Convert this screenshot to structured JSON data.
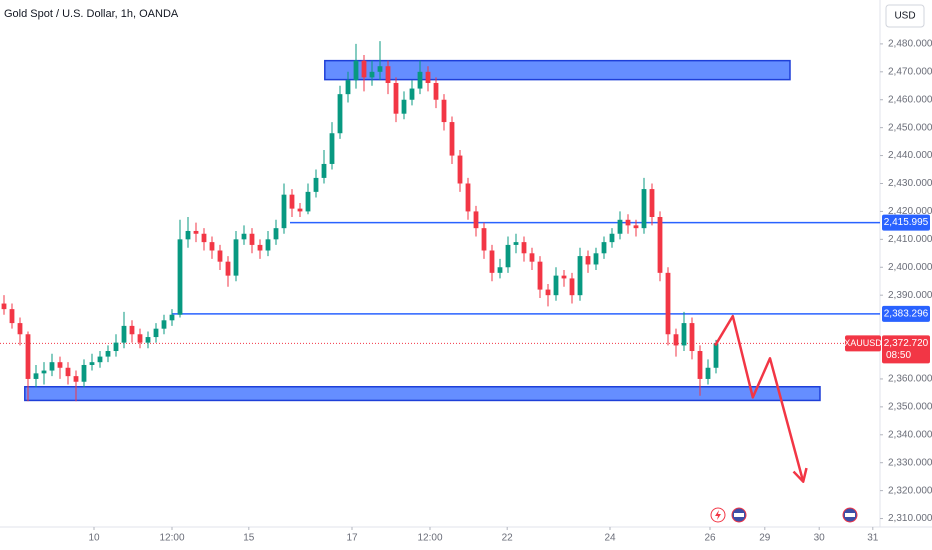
{
  "chart_data": {
    "type": "candlestick",
    "title": "Gold Spot / U.S. Dollar, 1h, OANDA",
    "currency": "USD",
    "up_color": "#089981",
    "down_color": "#f23645",
    "grid": false,
    "xlim": [
      -0.5,
      109.5
    ],
    "xticks": [
      {
        "value": 11.25,
        "label": "10"
      },
      {
        "value": 21,
        "label": "12:00"
      },
      {
        "value": 30.6,
        "label": "15"
      },
      {
        "value": 43.5,
        "label": "17"
      },
      {
        "value": 53.25,
        "label": "12:00"
      },
      {
        "value": 62.9,
        "label": "22"
      },
      {
        "value": 75.75,
        "label": "24"
      },
      {
        "value": 88.25,
        "label": "26"
      },
      {
        "value": 95.1,
        "label": "29"
      },
      {
        "value": 101.9,
        "label": "30"
      },
      {
        "value": 108.6,
        "label": "31"
      }
    ],
    "ylim": [
      2306.97,
      2495.72
    ],
    "yticks": [
      {
        "value": 2480,
        "label": "2,480.000"
      },
      {
        "value": 2470,
        "label": "2,470.000"
      },
      {
        "value": 2460,
        "label": "2,460.000"
      },
      {
        "value": 2450,
        "label": "2,450.000"
      },
      {
        "value": 2440,
        "label": "2,440.000"
      },
      {
        "value": 2430,
        "label": "2,430.000"
      },
      {
        "value": 2420,
        "label": "2,420.000"
      },
      {
        "value": 2410,
        "label": "2,410.000"
      },
      {
        "value": 2400,
        "label": "2,400.000"
      },
      {
        "value": 2390,
        "label": "2,390.000"
      },
      {
        "value": 2360,
        "label": "2,360.000"
      },
      {
        "value": 2350,
        "label": "2,350.000"
      },
      {
        "value": 2340,
        "label": "2,340.000"
      },
      {
        "value": 2330,
        "label": "2,330.000"
      },
      {
        "value": 2320,
        "label": "2,320.000"
      },
      {
        "value": 2310,
        "label": "2,310.000"
      }
    ],
    "candles": [
      [
        2387,
        2390,
        2383,
        2385
      ],
      [
        2385,
        2387,
        2378,
        2380
      ],
      [
        2380,
        2382,
        2372,
        2376
      ],
      [
        2376,
        2377,
        2352,
        2360
      ],
      [
        2360,
        2365,
        2357,
        2362
      ],
      [
        2362,
        2366,
        2358,
        2363
      ],
      [
        2363,
        2369,
        2361,
        2366
      ],
      [
        2366,
        2368,
        2360,
        2364
      ],
      [
        2364,
        2366,
        2358,
        2361
      ],
      [
        2361,
        2363,
        2352,
        2359
      ],
      [
        2359,
        2367,
        2357,
        2365
      ],
      [
        2365,
        2369,
        2363,
        2366
      ],
      [
        2366,
        2370,
        2364,
        2368
      ],
      [
        2368,
        2372,
        2366,
        2370
      ],
      [
        2370,
        2376,
        2368,
        2373
      ],
      [
        2373,
        2384,
        2371,
        2379
      ],
      [
        2379,
        2381,
        2373,
        2376
      ],
      [
        2376,
        2378,
        2371,
        2373
      ],
      [
        2373,
        2377,
        2371,
        2375
      ],
      [
        2375,
        2380,
        2373,
        2378
      ],
      [
        2378,
        2383,
        2376,
        2381
      ],
      [
        2381,
        2385,
        2379,
        2383
      ],
      [
        2383,
        2417,
        2382,
        2410
      ],
      [
        2410,
        2418,
        2407,
        2413
      ],
      [
        2413,
        2416,
        2409,
        2412
      ],
      [
        2412,
        2414,
        2406,
        2409
      ],
      [
        2409,
        2411,
        2403,
        2406
      ],
      [
        2406,
        2408,
        2399,
        2402
      ],
      [
        2402,
        2404,
        2393,
        2397
      ],
      [
        2397,
        2413,
        2395,
        2410
      ],
      [
        2410,
        2415,
        2408,
        2412
      ],
      [
        2412,
        2414,
        2405,
        2408
      ],
      [
        2408,
        2410,
        2403,
        2406
      ],
      [
        2406,
        2413,
        2404,
        2410
      ],
      [
        2410,
        2417,
        2408,
        2414
      ],
      [
        2414,
        2430,
        2412,
        2426
      ],
      [
        2426,
        2428,
        2418,
        2421
      ],
      [
        2421,
        2423,
        2418,
        2420
      ],
      [
        2420,
        2430,
        2419,
        2427
      ],
      [
        2427,
        2435,
        2425,
        2432
      ],
      [
        2432,
        2442,
        2430,
        2437
      ],
      [
        2437,
        2452,
        2435,
        2448
      ],
      [
        2448,
        2465,
        2446,
        2462
      ],
      [
        2462,
        2470,
        2459,
        2467
      ],
      [
        2467,
        2480,
        2464,
        2474
      ],
      [
        2474,
        2476,
        2463,
        2468
      ],
      [
        2468,
        2474,
        2465,
        2470
      ],
      [
        2470,
        2481,
        2467,
        2472
      ],
      [
        2472,
        2474,
        2462,
        2466
      ],
      [
        2466,
        2468,
        2452,
        2455
      ],
      [
        2455,
        2463,
        2453,
        2460
      ],
      [
        2460,
        2467,
        2458,
        2464
      ],
      [
        2464,
        2474,
        2462,
        2470
      ],
      [
        2470,
        2472,
        2463,
        2466
      ],
      [
        2466,
        2468,
        2457,
        2460
      ],
      [
        2460,
        2462,
        2449,
        2452
      ],
      [
        2452,
        2454,
        2437,
        2440
      ],
      [
        2440,
        2442,
        2427,
        2430
      ],
      [
        2430,
        2432,
        2417,
        2420
      ],
      [
        2420,
        2422,
        2411,
        2414
      ],
      [
        2414,
        2416,
        2403,
        2406
      ],
      [
        2406,
        2408,
        2395,
        2398
      ],
      [
        2398,
        2403,
        2396,
        2400
      ],
      [
        2400,
        2411,
        2398,
        2408
      ],
      [
        2408,
        2412,
        2405,
        2409
      ],
      [
        2409,
        2411,
        2402,
        2405
      ],
      [
        2405,
        2407,
        2399,
        2402
      ],
      [
        2402,
        2404,
        2389,
        2392
      ],
      [
        2392,
        2394,
        2386,
        2390
      ],
      [
        2390,
        2400,
        2388,
        2397
      ],
      [
        2397,
        2399,
        2393,
        2396
      ],
      [
        2396,
        2398,
        2387,
        2390
      ],
      [
        2390,
        2407,
        2388,
        2404
      ],
      [
        2404,
        2406,
        2398,
        2401
      ],
      [
        2401,
        2407,
        2399,
        2405
      ],
      [
        2405,
        2411,
        2403,
        2409
      ],
      [
        2409,
        2414,
        2407,
        2412
      ],
      [
        2412,
        2420,
        2410,
        2417
      ],
      [
        2417,
        2419,
        2412,
        2415
      ],
      [
        2415,
        2417,
        2411,
        2414
      ],
      [
        2414,
        2432,
        2412,
        2428
      ],
      [
        2428,
        2430,
        2415,
        2418
      ],
      [
        2418,
        2420,
        2395,
        2398
      ],
      [
        2398,
        2400,
        2372,
        2376
      ],
      [
        2376,
        2378,
        2368,
        2372
      ],
      [
        2372,
        2384,
        2370,
        2380
      ],
      [
        2380,
        2382,
        2367,
        2370
      ],
      [
        2370,
        2372,
        2354,
        2360
      ],
      [
        2360,
        2367,
        2358,
        2364
      ],
      [
        2364,
        2374,
        2362,
        2372.72
      ]
    ],
    "levels": [
      {
        "value": 2415.995,
        "label": "2,415.995",
        "from": 35.75,
        "color": "#2962ff"
      },
      {
        "value": 2383.296,
        "label": "2,383.296",
        "from": 21,
        "color": "#2962ff"
      }
    ],
    "zones": [
      {
        "x": [
          40.1,
          98.25
        ],
        "y": [
          2467.2,
          2474
        ]
      },
      {
        "x": [
          2.6,
          102
        ],
        "y": [
          2352.3,
          2357.2
        ]
      }
    ],
    "projection": {
      "x": [
        88.9,
        91.1,
        93.6,
        95.75,
        99.9
      ],
      "y": [
        2372,
        2382.5,
        2353.4,
        2367.4,
        2323.2
      ],
      "color": "#f23645"
    },
    "current": {
      "symbol": "XAUUSD",
      "value": 2372.72,
      "label": "2,372.720",
      "countdown": "08:50",
      "color": "#f23645"
    }
  }
}
